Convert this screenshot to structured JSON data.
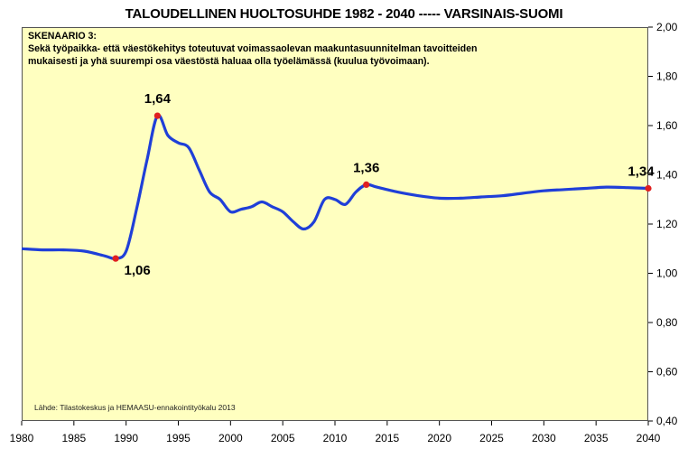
{
  "chart_data": {
    "type": "line",
    "title": "TALOUDELLINEN HUOLTOSUHDE  1982 - 2040 ----- VARSINAIS-SUOMI",
    "annotation": {
      "heading": "SKENAARIO 3:",
      "line1": "Sekä työpaikka- että väestökehitys toteutuvat voimassaolevan maakuntasuunnitelman tavoitteiden",
      "line2": "mukaisesti ja yhä suurempi osa väestöstä haluaa olla työelämässä (kuulua työvoimaan)."
    },
    "source": "Lähde: Tilastokeskus ja HEMAASU-ennakointityökalu 2013",
    "xlabel": "",
    "ylabel": "",
    "xlim": [
      1980,
      2040
    ],
    "ylim": [
      0.4,
      2.0
    ],
    "x_ticks": [
      "1980",
      "1985",
      "1990",
      "1995",
      "2000",
      "2005",
      "2010",
      "2015",
      "2020",
      "2025",
      "2030",
      "2035",
      "2040"
    ],
    "y_ticks": [
      "2,00",
      "1,80",
      "1,60",
      "1,40",
      "1,20",
      "1,00",
      "0,80",
      "0,60",
      "0,40"
    ],
    "y_axis_side": "right",
    "grid": false,
    "background_color": "#ffffc0",
    "line_color": "#1f3fd8",
    "marker_color": "#e02020",
    "series": [
      {
        "x": [
          1980,
          1982,
          1984,
          1986,
          1988,
          1989,
          1990,
          1991,
          1992,
          1993,
          1994,
          1995,
          1996,
          1997,
          1998,
          1999,
          2000,
          2001,
          2002,
          2003,
          2004,
          2005,
          2006,
          2007,
          2008,
          2009,
          2010,
          2011,
          2012,
          2013,
          2014,
          2016,
          2018,
          2020,
          2022,
          2024,
          2026,
          2028,
          2030,
          2032,
          2034,
          2036,
          2038,
          2040
        ],
        "y": [
          1.1,
          1.095,
          1.095,
          1.09,
          1.07,
          1.06,
          1.09,
          1.26,
          1.46,
          1.64,
          1.56,
          1.53,
          1.51,
          1.42,
          1.33,
          1.3,
          1.25,
          1.26,
          1.27,
          1.29,
          1.27,
          1.25,
          1.21,
          1.18,
          1.21,
          1.3,
          1.3,
          1.28,
          1.33,
          1.36,
          1.35,
          1.33,
          1.315,
          1.305,
          1.305,
          1.31,
          1.315,
          1.325,
          1.335,
          1.34,
          1.345,
          1.35,
          1.348,
          1.345
        ]
      }
    ],
    "markers": [
      {
        "x": 1989,
        "y": 1.06,
        "label": "1,06"
      },
      {
        "x": 1993,
        "y": 1.64,
        "label": "1,64"
      },
      {
        "x": 2013,
        "y": 1.36,
        "label": "1,36"
      },
      {
        "x": 2040,
        "y": 1.345,
        "label": "1,34"
      }
    ]
  }
}
